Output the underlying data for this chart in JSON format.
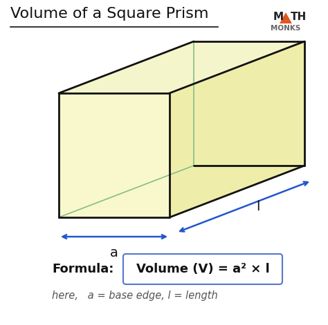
{
  "title": "Volume of a Square Prism",
  "bg_color": "#ffffff",
  "prism_fill_front": "#f8f8cc",
  "prism_fill_top": "#f5f5cc",
  "prism_fill_right": "#eeeeaa",
  "prism_edge_color": "#111111",
  "hidden_edge_color": "#88bb88",
  "arrow_color": "#2255cc",
  "formula_text": "Volume (V) = a² × l",
  "formula_label": "Formula:",
  "note_text": "here,   a = base edge, l = length",
  "label_a": "a",
  "label_l": "l",
  "logo_m": "M",
  "logo_th": "TH",
  "logo_monks": "MONKS",
  "logo_tri_color": "#e05820",
  "logo_text_color": "#222222",
  "logo_monks_color": "#666666"
}
